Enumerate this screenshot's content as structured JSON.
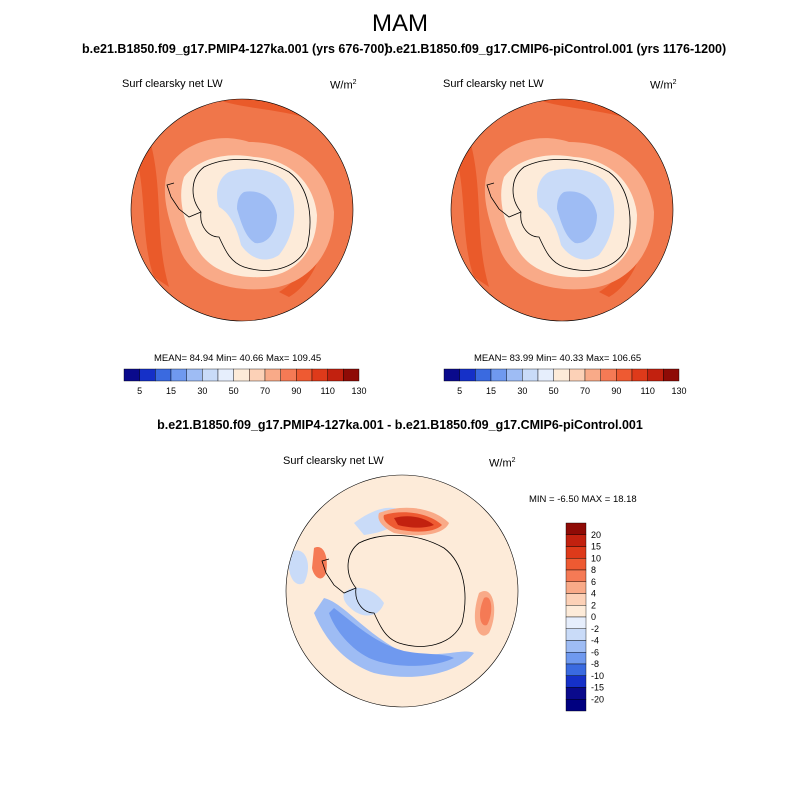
{
  "season": "MAM",
  "panels": [
    {
      "case": "b.e21.B1850.f09_g17.PMIP4-127ka.001 (yrs 676-700)",
      "field": "Surf clearsky net LW",
      "units": "W/m",
      "units_exp": "2",
      "stats_text": "MEAN=  84.94  Min=  40.66  Max= 109.45"
    },
    {
      "case": "b.e21.B1850.f09_g17.CMIP6-piControl.001 (yrs 1176-1200)",
      "field": "Surf clearsky net LW",
      "units": "W/m",
      "units_exp": "2",
      "stats_text": "MEAN=  83.99  Min=  40.33  Max= 106.65"
    }
  ],
  "abs_colorbar": {
    "labels": [
      "5",
      "15",
      "30",
      "50",
      "70",
      "90",
      "110",
      "130"
    ],
    "colors": [
      "#0a0a8c",
      "#1530c8",
      "#3a6ae0",
      "#6f99ef",
      "#9ebcf4",
      "#c9dbf8",
      "#e6eefc",
      "#fdebd9",
      "#fcd1b7",
      "#f9aa88",
      "#f57a55",
      "#ee5a32",
      "#de3a1a",
      "#c2210f",
      "#8f0b06"
    ]
  },
  "diff_panel": {
    "title": "b.e21.B1850.f09_g17.PMIP4-127ka.001 - b.e21.B1850.f09_g17.CMIP6-piControl.001",
    "field": "Surf clearsky net LW",
    "units": "W/m",
    "units_exp": "2",
    "minmax_text": "MIN =  -6.50 MAX =  18.18",
    "colorbar": {
      "labels": [
        "20",
        "15",
        "10",
        "8",
        "6",
        "4",
        "2",
        "0",
        "-2",
        "-4",
        "-6",
        "-8",
        "-10",
        "-15",
        "-20"
      ],
      "colors": [
        "#8f0b06",
        "#c2210f",
        "#de3a1a",
        "#ee5a32",
        "#f57a55",
        "#f9aa88",
        "#fcd1b7",
        "#fdebd9",
        "#e6eefc",
        "#c9dbf8",
        "#9ebcf4",
        "#6f99ef",
        "#3a6ae0",
        "#1530c8",
        "#0a0a8c",
        "#000080"
      ]
    }
  },
  "colors": {
    "ocean_warm": "#f0764a",
    "ocean_hot": "#ea5a2a",
    "ice_pale": "#fdebd9",
    "land_blue": "#c9dbf8",
    "land_mid": "#9ebcf4",
    "diff_base": "#fdebd9"
  }
}
